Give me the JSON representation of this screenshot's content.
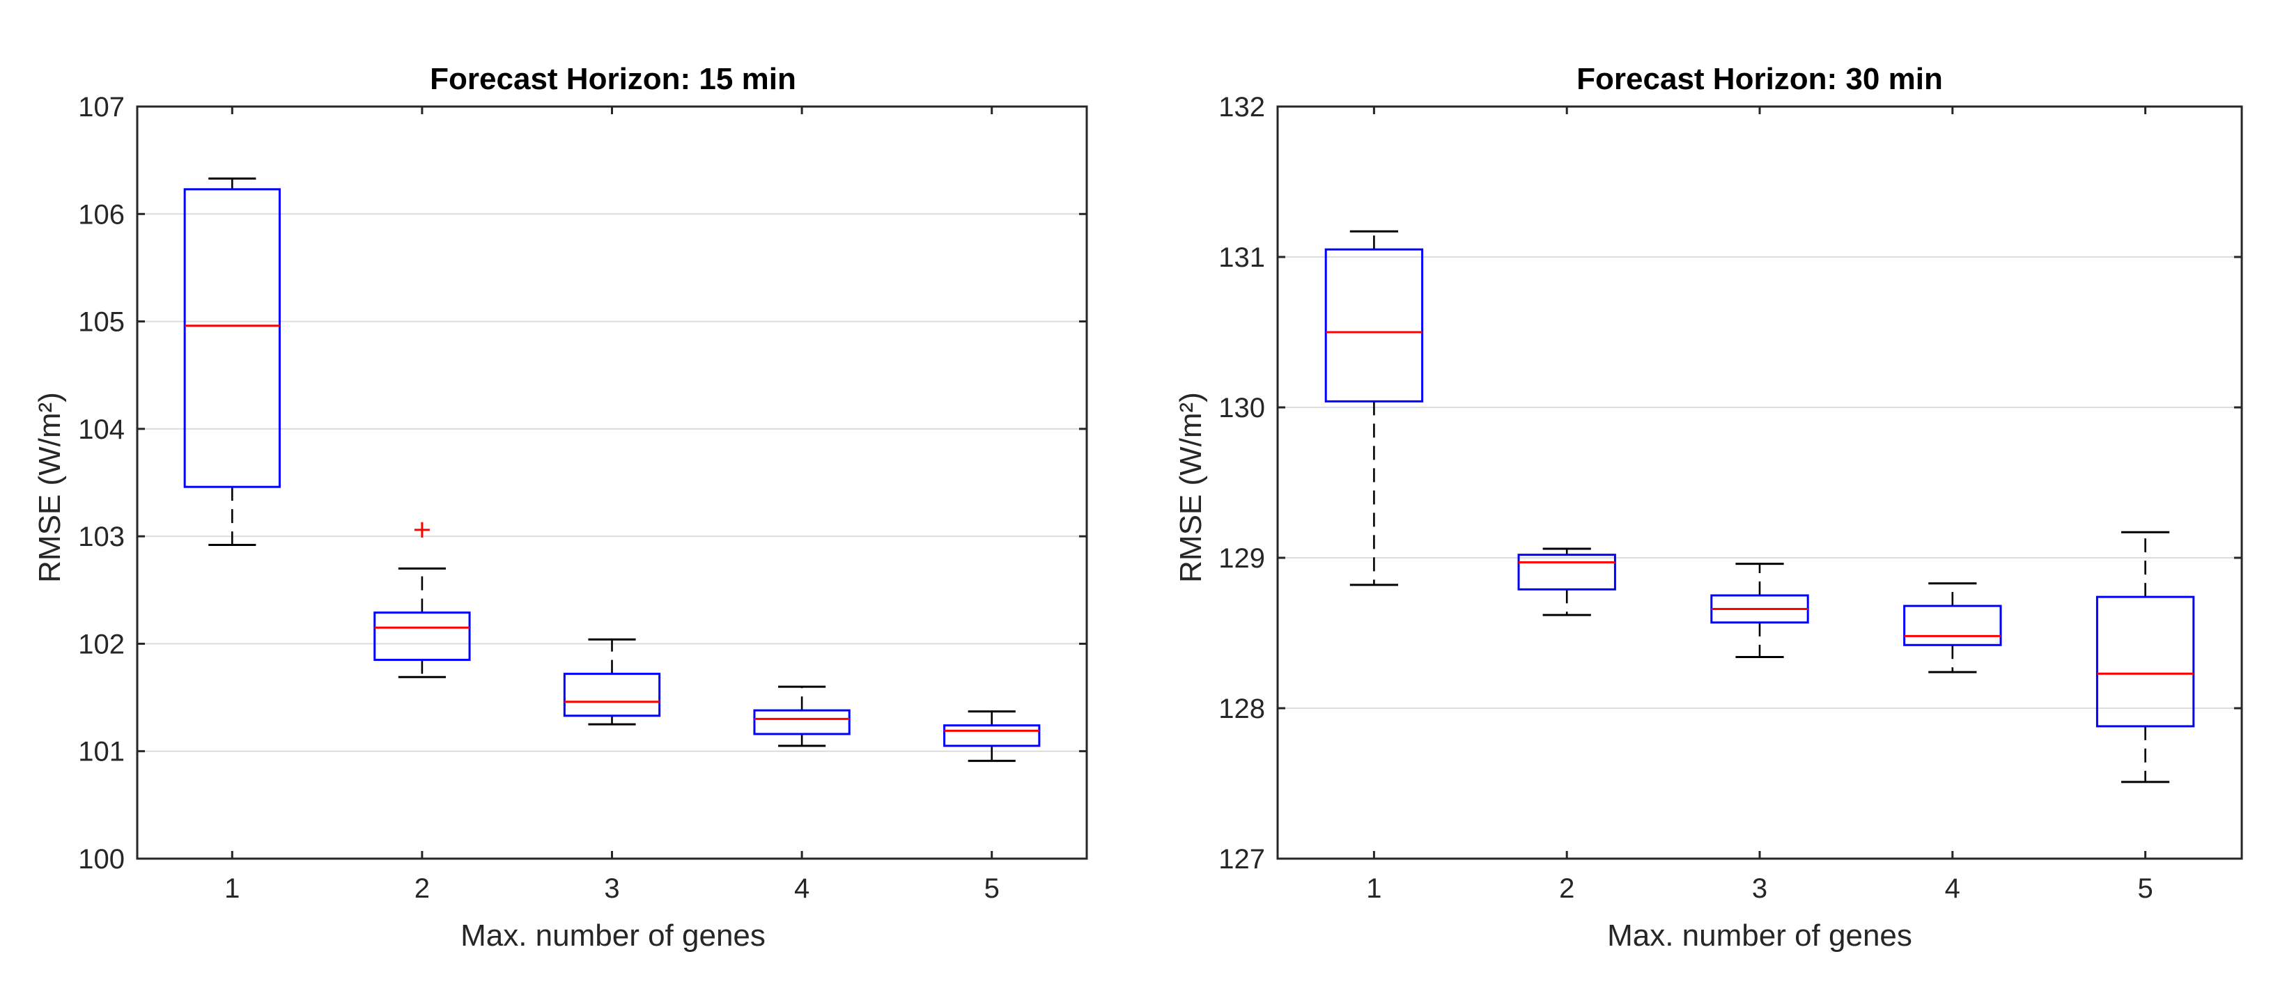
{
  "chart_data": [
    {
      "type": "boxplot",
      "title": "Forecast Horizon: 15 min",
      "xlabel": "Max. number of genes",
      "ylabel": "RMSE (W/m²)",
      "categories": [
        "1",
        "2",
        "3",
        "4",
        "5"
      ],
      "ylim": [
        100,
        107
      ],
      "yticks": [
        100,
        101,
        102,
        103,
        104,
        105,
        106,
        107
      ],
      "ytick_labels": [
        "100",
        "101",
        "102",
        "103",
        "104",
        "105",
        "106",
        "107"
      ],
      "grid": "y",
      "boxes": [
        {
          "category": "1",
          "whisker_low": 102.92,
          "q1": 103.46,
          "median": 104.96,
          "q3": 106.23,
          "whisker_high": 106.33,
          "outliers": []
        },
        {
          "category": "2",
          "whisker_low": 101.69,
          "q1": 101.85,
          "median": 102.15,
          "q3": 102.29,
          "whisker_high": 102.7,
          "outliers": [
            103.06
          ]
        },
        {
          "category": "3",
          "whisker_low": 101.25,
          "q1": 101.33,
          "median": 101.46,
          "q3": 101.72,
          "whisker_high": 102.04,
          "outliers": []
        },
        {
          "category": "4",
          "whisker_low": 101.05,
          "q1": 101.16,
          "median": 101.3,
          "q3": 101.38,
          "whisker_high": 101.6,
          "outliers": []
        },
        {
          "category": "5",
          "whisker_low": 100.91,
          "q1": 101.05,
          "median": 101.19,
          "q3": 101.24,
          "whisker_high": 101.37,
          "outliers": []
        }
      ]
    },
    {
      "type": "boxplot",
      "title": "Forecast Horizon: 30 min",
      "xlabel": "Max. number of genes",
      "ylabel": "RMSE (W/m²)",
      "categories": [
        "1",
        "2",
        "3",
        "4",
        "5"
      ],
      "ylim": [
        127,
        132
      ],
      "yticks": [
        127,
        128,
        129,
        130,
        131,
        132
      ],
      "ytick_labels": [
        "127",
        "128",
        "129",
        "130",
        "131",
        "132"
      ],
      "grid": "y",
      "boxes": [
        {
          "category": "1",
          "whisker_low": 128.82,
          "q1": 130.04,
          "median": 130.5,
          "q3": 131.05,
          "whisker_high": 131.17,
          "outliers": []
        },
        {
          "category": "2",
          "whisker_low": 128.62,
          "q1": 128.79,
          "median": 128.97,
          "q3": 129.02,
          "whisker_high": 129.06,
          "outliers": []
        },
        {
          "category": "3",
          "whisker_low": 128.34,
          "q1": 128.57,
          "median": 128.66,
          "q3": 128.75,
          "whisker_high": 128.96,
          "outliers": []
        },
        {
          "category": "4",
          "whisker_low": 128.24,
          "q1": 128.42,
          "median": 128.48,
          "q3": 128.68,
          "whisker_high": 128.83,
          "outliers": []
        },
        {
          "category": "5",
          "whisker_low": 127.51,
          "q1": 127.88,
          "median": 128.23,
          "q3": 128.74,
          "whisker_high": 129.17,
          "outliers": []
        }
      ]
    }
  ],
  "colors": {
    "box": "#0000ff",
    "median": "#ff0000",
    "outlier": "#ff0000",
    "whisker": "#000000",
    "axis": "#262626",
    "grid": "#dcdcdc"
  }
}
